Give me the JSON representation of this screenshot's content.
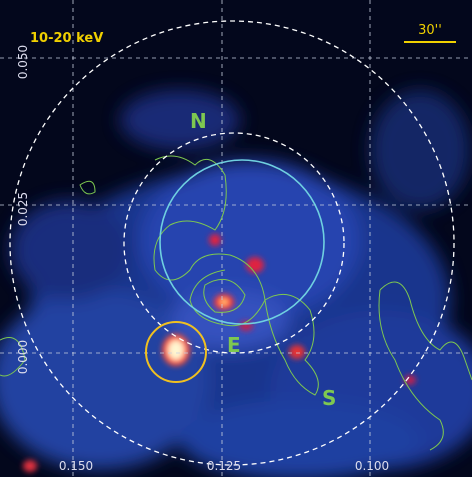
{
  "band_label": "10-20 keV",
  "scale_bar": "30''",
  "directions": {
    "north": "N",
    "east": "E",
    "south": "S"
  },
  "y_axis": {
    "ticks": [
      "0.050",
      "0.025",
      "0.000"
    ]
  },
  "x_axis": {
    "ticks": [
      "0.150",
      "0.125",
      "0.100"
    ]
  }
}
